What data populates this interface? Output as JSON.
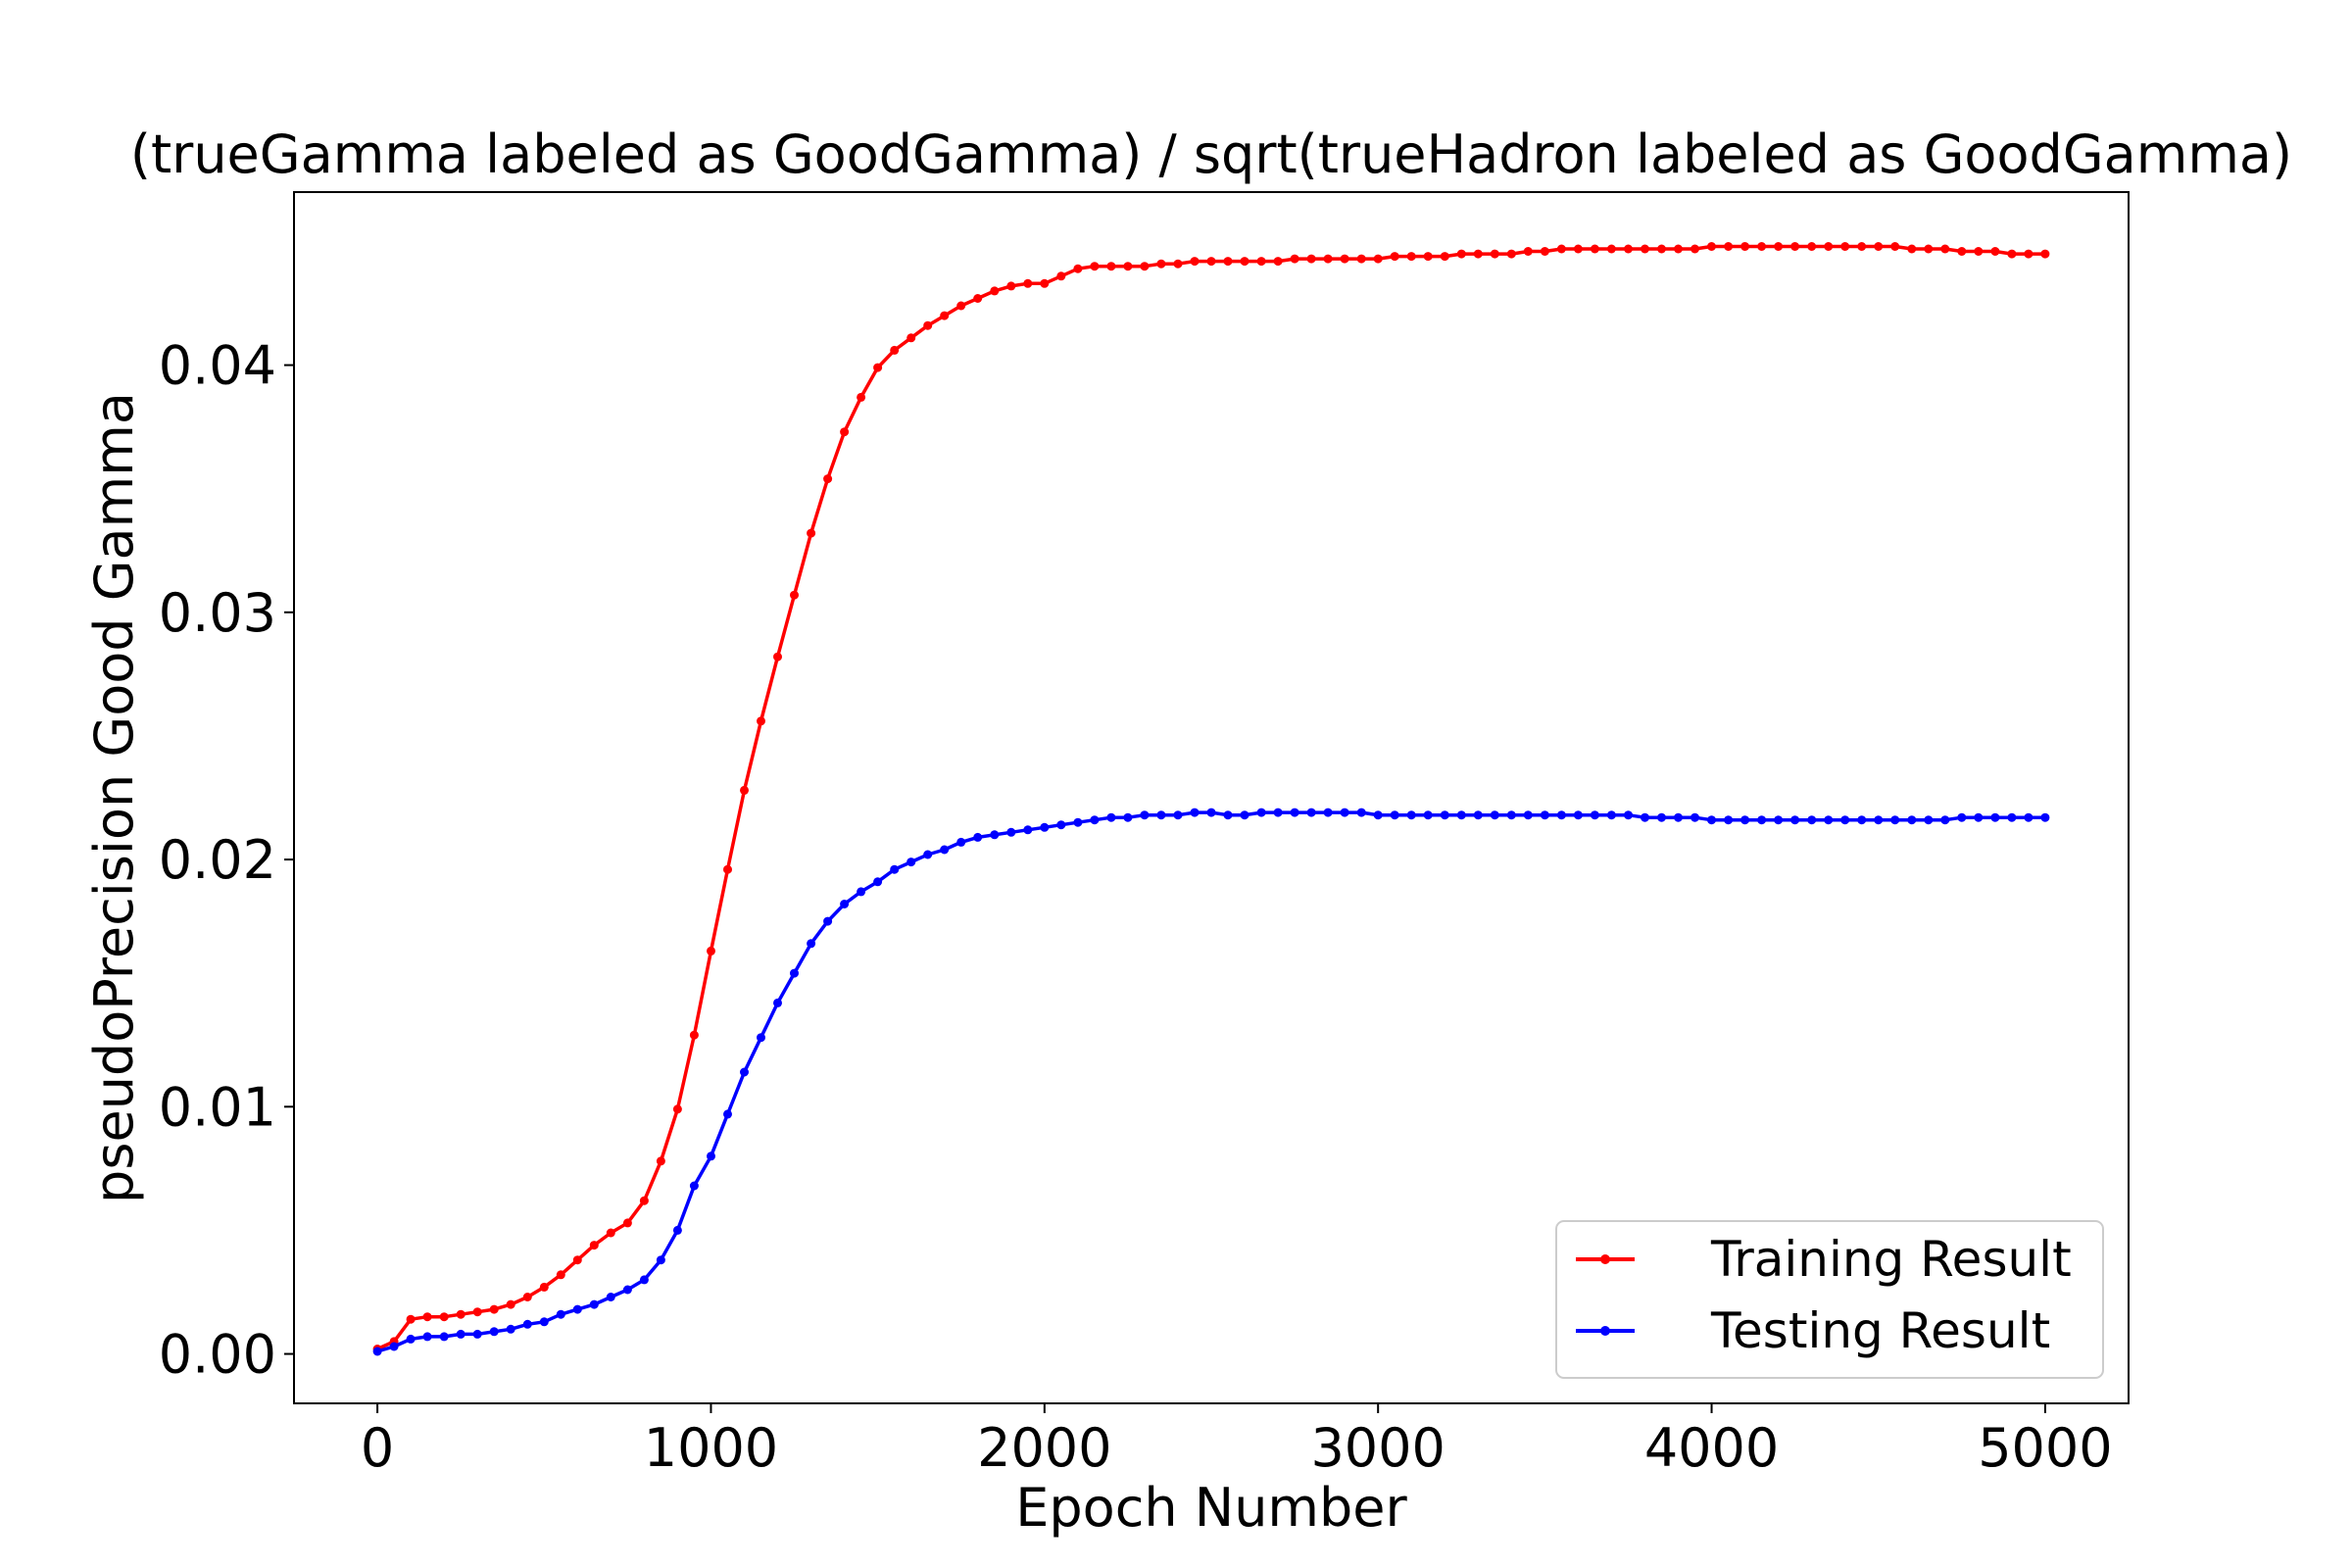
{
  "chart_data": {
    "type": "line",
    "title": "(trueGamma labeled as GoodGamma) / sqrt(trueHadron labeled as GoodGamma)",
    "xlabel": "Epoch Number",
    "ylabel": "pseudoPrecision Good Gamma",
    "xlim": [
      -250,
      5250
    ],
    "ylim": [
      -0.002,
      0.047
    ],
    "xticks": [
      "0",
      "1000",
      "2000",
      "3000",
      "4000",
      "5000"
    ],
    "yticks": [
      "0.00",
      "0.01",
      "0.02",
      "0.03",
      "0.04"
    ],
    "grid": false,
    "legend_position": "lower-right",
    "x": [
      0,
      50,
      100,
      150,
      200,
      250,
      300,
      350,
      400,
      450,
      500,
      550,
      600,
      650,
      700,
      750,
      800,
      850,
      900,
      950,
      1000,
      1050,
      1100,
      1150,
      1200,
      1250,
      1300,
      1350,
      1400,
      1450,
      1500,
      1550,
      1600,
      1650,
      1700,
      1750,
      1800,
      1850,
      1900,
      1950,
      2000,
      2050,
      2100,
      2150,
      2200,
      2250,
      2300,
      2350,
      2400,
      2450,
      2500,
      2550,
      2600,
      2650,
      2700,
      2750,
      2800,
      2850,
      2900,
      2950,
      3000,
      3050,
      3100,
      3150,
      3200,
      3250,
      3300,
      3350,
      3400,
      3450,
      3500,
      3550,
      3600,
      3650,
      3700,
      3750,
      3800,
      3850,
      3900,
      3950,
      4000,
      4050,
      4100,
      4150,
      4200,
      4250,
      4300,
      4350,
      4400,
      4450,
      4500,
      4550,
      4600,
      4650,
      4700,
      4750,
      4800,
      4850,
      4900,
      4950,
      5000
    ],
    "series": [
      {
        "name": "Training Result",
        "color": "#ff0000",
        "values": [
          0.0002,
          0.0005,
          0.0014,
          0.0015,
          0.0015,
          0.0016,
          0.0017,
          0.0018,
          0.002,
          0.0023,
          0.0027,
          0.0032,
          0.0038,
          0.0044,
          0.0049,
          0.0053,
          0.0062,
          0.0078,
          0.0099,
          0.0129,
          0.0163,
          0.0196,
          0.0228,
          0.0256,
          0.0282,
          0.0307,
          0.0332,
          0.0354,
          0.0373,
          0.0387,
          0.0399,
          0.0406,
          0.0411,
          0.0416,
          0.042,
          0.0424,
          0.0427,
          0.043,
          0.0432,
          0.0433,
          0.0433,
          0.0436,
          0.0439,
          0.044,
          0.044,
          0.044,
          0.044,
          0.0441,
          0.0441,
          0.0442,
          0.0442,
          0.0442,
          0.0442,
          0.0442,
          0.0442,
          0.0443,
          0.0443,
          0.0443,
          0.0443,
          0.0443,
          0.0443,
          0.0444,
          0.0444,
          0.0444,
          0.0444,
          0.0445,
          0.0445,
          0.0445,
          0.0445,
          0.0446,
          0.0446,
          0.0447,
          0.0447,
          0.0447,
          0.0447,
          0.0447,
          0.0447,
          0.0447,
          0.0447,
          0.0447,
          0.0448,
          0.0448,
          0.0448,
          0.0448,
          0.0448,
          0.0448,
          0.0448,
          0.0448,
          0.0448,
          0.0448,
          0.0448,
          0.0448,
          0.0447,
          0.0447,
          0.0447,
          0.0446,
          0.0446,
          0.0446,
          0.0445,
          0.0445,
          0.0445
        ]
      },
      {
        "name": "Testing Result",
        "color": "#0000ff",
        "values": [
          0.0001,
          0.0003,
          0.0006,
          0.0007,
          0.0007,
          0.0008,
          0.0008,
          0.0009,
          0.001,
          0.0012,
          0.0013,
          0.0016,
          0.0018,
          0.002,
          0.0023,
          0.0026,
          0.003,
          0.0038,
          0.005,
          0.0068,
          0.008,
          0.0097,
          0.0114,
          0.0128,
          0.0142,
          0.0154,
          0.0166,
          0.0175,
          0.0182,
          0.0187,
          0.0191,
          0.0196,
          0.0199,
          0.0202,
          0.0204,
          0.0207,
          0.0209,
          0.021,
          0.0211,
          0.0212,
          0.0213,
          0.0214,
          0.0215,
          0.0216,
          0.0217,
          0.0217,
          0.0218,
          0.0218,
          0.0218,
          0.0219,
          0.0219,
          0.0218,
          0.0218,
          0.0219,
          0.0219,
          0.0219,
          0.0219,
          0.0219,
          0.0219,
          0.0219,
          0.0218,
          0.0218,
          0.0218,
          0.0218,
          0.0218,
          0.0218,
          0.0218,
          0.0218,
          0.0218,
          0.0218,
          0.0218,
          0.0218,
          0.0218,
          0.0218,
          0.0218,
          0.0218,
          0.0217,
          0.0217,
          0.0217,
          0.0217,
          0.0216,
          0.0216,
          0.0216,
          0.0216,
          0.0216,
          0.0216,
          0.0216,
          0.0216,
          0.0216,
          0.0216,
          0.0216,
          0.0216,
          0.0216,
          0.0216,
          0.0216,
          0.0217,
          0.0217,
          0.0217,
          0.0217,
          0.0217,
          0.0217
        ]
      }
    ]
  }
}
